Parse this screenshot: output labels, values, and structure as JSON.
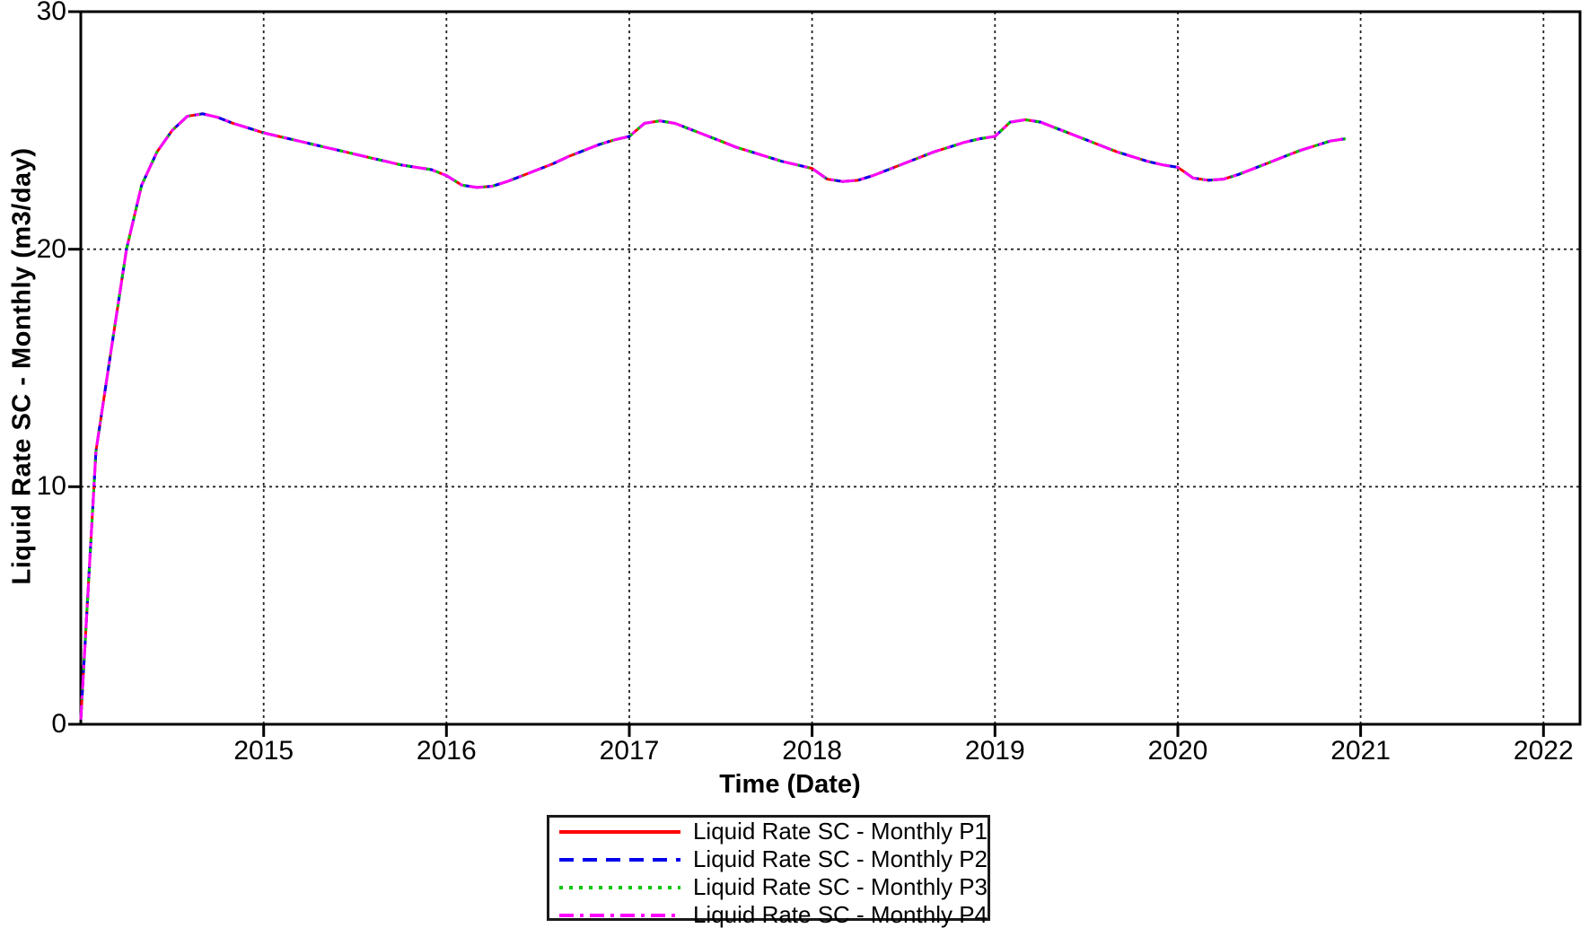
{
  "chart_data": {
    "type": "line",
    "title": "",
    "xlabel": "Time (Date)",
    "ylabel": "Liquid Rate SC - Monthly (m3/day)",
    "xlim": [
      2014.0,
      2022.2
    ],
    "ylim": [
      0,
      30
    ],
    "x_ticks": [
      2015,
      2016,
      2017,
      2018,
      2019,
      2020,
      2021,
      2022
    ],
    "y_ticks": [
      0,
      10,
      20,
      30
    ],
    "grid": true,
    "grid_style": "dashed",
    "legend_position": "bottom-center",
    "series": [
      {
        "name": "Liquid Rate SC - Monthly P1",
        "color": "#FF0000",
        "line_style": "solid"
      },
      {
        "name": "Liquid Rate SC - Monthly P2",
        "color": "#0000EE",
        "line_style": "dash"
      },
      {
        "name": "Liquid Rate SC - Monthly P3",
        "color": "#00C800",
        "line_style": "dot"
      },
      {
        "name": "Liquid Rate SC - Monthly P4",
        "color": "#FF00FF",
        "line_style": "dashdot"
      }
    ],
    "series_note": "All four series overlap exactly; each uses shared_values.",
    "x": [
      2014.0,
      2014.083,
      2014.167,
      2014.25,
      2014.333,
      2014.417,
      2014.5,
      2014.583,
      2014.667,
      2014.75,
      2014.833,
      2014.917,
      2015.0,
      2015.083,
      2015.167,
      2015.25,
      2015.333,
      2015.417,
      2015.5,
      2015.583,
      2015.667,
      2015.75,
      2015.833,
      2015.917,
      2016.0,
      2016.083,
      2016.167,
      2016.25,
      2016.333,
      2016.417,
      2016.5,
      2016.583,
      2016.667,
      2016.75,
      2016.833,
      2016.917,
      2017.0,
      2017.083,
      2017.167,
      2017.25,
      2017.333,
      2017.417,
      2017.5,
      2017.583,
      2017.667,
      2017.75,
      2017.833,
      2017.917,
      2018.0,
      2018.083,
      2018.167,
      2018.25,
      2018.333,
      2018.417,
      2018.5,
      2018.583,
      2018.667,
      2018.75,
      2018.833,
      2018.917,
      2019.0,
      2019.083,
      2019.167,
      2019.25,
      2019.333,
      2019.417,
      2019.5,
      2019.583,
      2019.667,
      2019.75,
      2019.833,
      2019.917,
      2020.0,
      2020.083,
      2020.167,
      2020.25,
      2020.333,
      2020.417,
      2020.5,
      2020.583,
      2020.667,
      2020.75,
      2020.833,
      2020.917
    ],
    "shared_values": [
      0.2,
      11.5,
      15.8,
      20.0,
      22.7,
      24.1,
      25.0,
      25.6,
      25.7,
      25.55,
      25.3,
      25.1,
      24.9,
      24.75,
      24.6,
      24.45,
      24.3,
      24.15,
      24.0,
      23.85,
      23.7,
      23.55,
      23.45,
      23.35,
      23.1,
      22.7,
      22.6,
      22.65,
      22.85,
      23.1,
      23.35,
      23.6,
      23.9,
      24.15,
      24.4,
      24.6,
      24.75,
      25.3,
      25.4,
      25.3,
      25.05,
      24.8,
      24.55,
      24.3,
      24.1,
      23.9,
      23.7,
      23.55,
      23.4,
      22.95,
      22.85,
      22.9,
      23.1,
      23.35,
      23.6,
      23.85,
      24.1,
      24.3,
      24.5,
      24.65,
      24.75,
      25.35,
      25.45,
      25.35,
      25.1,
      24.85,
      24.6,
      24.35,
      24.1,
      23.9,
      23.7,
      23.55,
      23.45,
      23.0,
      22.9,
      22.95,
      23.15,
      23.4,
      23.65,
      23.9,
      24.15,
      24.35,
      24.55,
      24.65
    ],
    "axis_color": "#000000",
    "grid_color": "#222222",
    "background": "#FFFFFF"
  }
}
